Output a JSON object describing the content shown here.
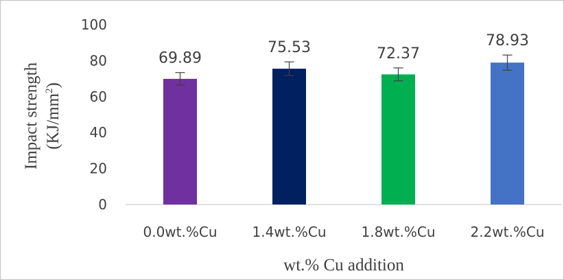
{
  "chart_data": {
    "type": "bar",
    "categories": [
      "0.0wt.%Cu",
      "1.4wt.%Cu",
      "1.8wt.%Cu",
      "2.2wt.%Cu"
    ],
    "values": [
      69.89,
      75.53,
      72.37,
      78.93
    ],
    "data_labels": [
      "69.89",
      "75.53",
      "72.37",
      "78.93"
    ],
    "error": [
      3.5,
      3.8,
      3.6,
      4.2
    ],
    "bar_colors": [
      "#7030a0",
      "#002060",
      "#00b050",
      "#4472c4"
    ],
    "ylim": [
      0,
      100
    ],
    "yticks": [
      0,
      20,
      40,
      60,
      80,
      100
    ],
    "ytick_labels": [
      "0",
      "20",
      "40",
      "60",
      "80",
      "100"
    ],
    "xlabel": "wt.% Cu addition",
    "ylabel_line1": "Impact  strength",
    "ylabel_line2_main": "(KJ/mm",
    "ylabel_line2_sup": "2",
    "ylabel_line2_end": ")",
    "grid": false,
    "axis_color": "#d9d9d9",
    "text_color": "#404040"
  }
}
